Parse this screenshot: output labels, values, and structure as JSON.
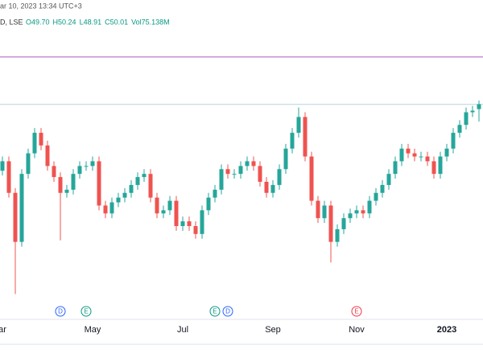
{
  "header": {
    "timestamp": "ar 10, 2023 13:34 UTC+3",
    "symbol": "D, LSE",
    "fields": [
      "O49.70",
      "H50.24",
      "L48.91",
      "C50.01",
      "Vol75.138M"
    ]
  },
  "chart_data": {
    "type": "candlestick",
    "open": [
      45.8,
      46.4,
      44.4,
      41.3,
      45.6,
      46.9,
      48.2,
      47.4,
      46.1,
      45.4,
      44.4,
      44.6,
      45.6,
      46.1,
      46.1,
      46.4,
      43.6,
      43.1,
      43.8,
      44.1,
      44.4,
      44.9,
      45.4,
      45.6,
      44.1,
      43.1,
      43.3,
      43.9,
      42.3,
      42.6,
      42.3,
      41.8,
      43.3,
      44.1,
      44.6,
      45.9,
      45.6,
      45.6,
      46.1,
      46.4,
      46.1,
      45.1,
      44.4,
      44.9,
      45.9,
      47.2,
      48.2,
      49.2,
      46.7,
      43.9,
      42.8,
      43.6,
      41.3,
      42.1,
      42.8,
      43.1,
      43.3,
      43.1,
      43.9,
      44.4,
      44.9,
      45.6,
      46.4,
      47.2,
      46.9,
      46.7,
      46.7,
      46.4,
      45.6,
      46.7,
      47.2,
      48.2,
      48.7,
      49.5,
      49.7
    ],
    "high": [
      46.7,
      46.7,
      44.7,
      45.9,
      47.2,
      48.5,
      48.5,
      47.7,
      46.4,
      45.7,
      44.9,
      45.9,
      46.4,
      46.4,
      46.7,
      46.7,
      43.9,
      44.1,
      44.4,
      44.7,
      45.2,
      45.7,
      45.9,
      45.9,
      44.4,
      43.6,
      44.2,
      44.2,
      42.9,
      42.9,
      42.6,
      43.6,
      44.4,
      44.9,
      46.2,
      46.2,
      45.9,
      46.4,
      46.7,
      46.7,
      46.4,
      45.4,
      45.2,
      46.2,
      47.5,
      48.5,
      49.8,
      49.5,
      47.0,
      44.2,
      43.9,
      43.9,
      42.4,
      43.1,
      43.4,
      43.6,
      43.6,
      44.2,
      44.7,
      45.2,
      45.9,
      46.7,
      47.5,
      47.5,
      47.2,
      47.0,
      47.0,
      46.7,
      47.0,
      47.5,
      48.5,
      49.0,
      49.8,
      49.9,
      50.24
    ],
    "low": [
      45.5,
      44.1,
      38.0,
      41.0,
      45.3,
      46.6,
      47.1,
      45.8,
      45.1,
      41.4,
      44.1,
      44.3,
      45.3,
      45.8,
      45.8,
      43.3,
      42.8,
      42.8,
      43.5,
      43.8,
      44.1,
      44.6,
      45.1,
      43.8,
      42.8,
      42.8,
      43.0,
      42.0,
      42.0,
      42.0,
      41.5,
      41.5,
      43.0,
      43.8,
      44.3,
      45.3,
      45.3,
      45.3,
      45.8,
      45.8,
      44.8,
      44.1,
      44.1,
      44.6,
      45.6,
      46.9,
      47.9,
      46.4,
      43.6,
      42.5,
      42.5,
      40.0,
      41.0,
      41.8,
      42.5,
      42.8,
      42.8,
      42.8,
      43.6,
      44.1,
      44.6,
      45.3,
      46.1,
      46.6,
      46.4,
      46.4,
      46.1,
      45.3,
      45.3,
      46.4,
      46.9,
      47.9,
      48.4,
      49.2,
      48.91
    ],
    "close": [
      46.4,
      44.4,
      41.3,
      45.6,
      46.9,
      48.2,
      47.4,
      46.1,
      45.4,
      44.4,
      44.6,
      45.6,
      46.1,
      46.1,
      46.4,
      43.6,
      43.1,
      43.8,
      44.1,
      44.4,
      44.9,
      45.4,
      45.6,
      44.1,
      43.1,
      43.3,
      43.9,
      42.3,
      42.6,
      42.3,
      41.8,
      43.3,
      44.1,
      44.6,
      45.9,
      45.6,
      45.6,
      46.1,
      46.4,
      46.1,
      45.1,
      44.4,
      44.9,
      45.9,
      47.2,
      48.2,
      49.2,
      46.7,
      43.9,
      42.8,
      43.6,
      41.3,
      42.1,
      42.8,
      43.1,
      43.3,
      43.1,
      43.9,
      44.4,
      44.9,
      45.6,
      46.4,
      47.2,
      46.9,
      46.7,
      46.7,
      46.4,
      45.6,
      46.7,
      47.2,
      48.2,
      48.7,
      49.5,
      49.6,
      50.01
    ],
    "up_color": "#26a69a",
    "down_color": "#ef5350",
    "ylim": [
      36.5,
      56.6
    ],
    "hlines": [
      {
        "value": 53.0,
        "color": "#c78fd9"
      },
      {
        "value": 50.0,
        "color": "#b8d4de"
      }
    ],
    "xticks": [
      {
        "value": 0,
        "label": "ar"
      },
      {
        "value": 14,
        "label": "May"
      },
      {
        "value": 28,
        "label": "Jul"
      },
      {
        "value": 42,
        "label": "Sep"
      },
      {
        "value": 55,
        "label": "Nov"
      },
      {
        "value": 69,
        "label": "2023"
      }
    ],
    "events": [
      {
        "value": 9,
        "label": "D",
        "color": "#2962ff"
      },
      {
        "value": 13,
        "label": "E",
        "color": "#089981"
      },
      {
        "value": 33,
        "label": "E",
        "color": "#089981"
      },
      {
        "value": 35,
        "label": "D",
        "color": "#2962ff"
      },
      {
        "value": 55,
        "label": "E",
        "color": "#f23645"
      }
    ]
  }
}
